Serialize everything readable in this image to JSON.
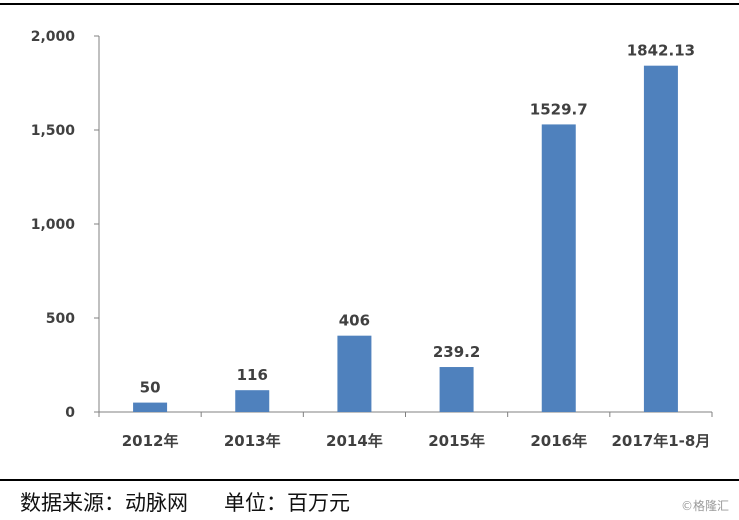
{
  "chart_data": {
    "type": "bar",
    "categories": [
      "2012年",
      "2013年",
      "2014年",
      "2015年",
      "2016年",
      "2017年1-8月"
    ],
    "values": [
      50,
      116,
      406,
      239.2,
      1529.7,
      1842.13
    ],
    "value_labels": [
      "50",
      "116",
      "406",
      "239.2",
      "1529.7",
      "1842.13"
    ],
    "ylim": [
      0,
      2000
    ],
    "yticks": [
      0,
      500,
      1000,
      1500,
      2000
    ],
    "ytick_labels": [
      "0",
      "500",
      "1,000",
      "1,500",
      "2,000"
    ],
    "bar_color": "#4f81bd",
    "grid": false,
    "legend": "none"
  },
  "footer": {
    "source": "数据来源：动脉网",
    "unit": "单位：百万元"
  },
  "watermark": "©格隆汇"
}
